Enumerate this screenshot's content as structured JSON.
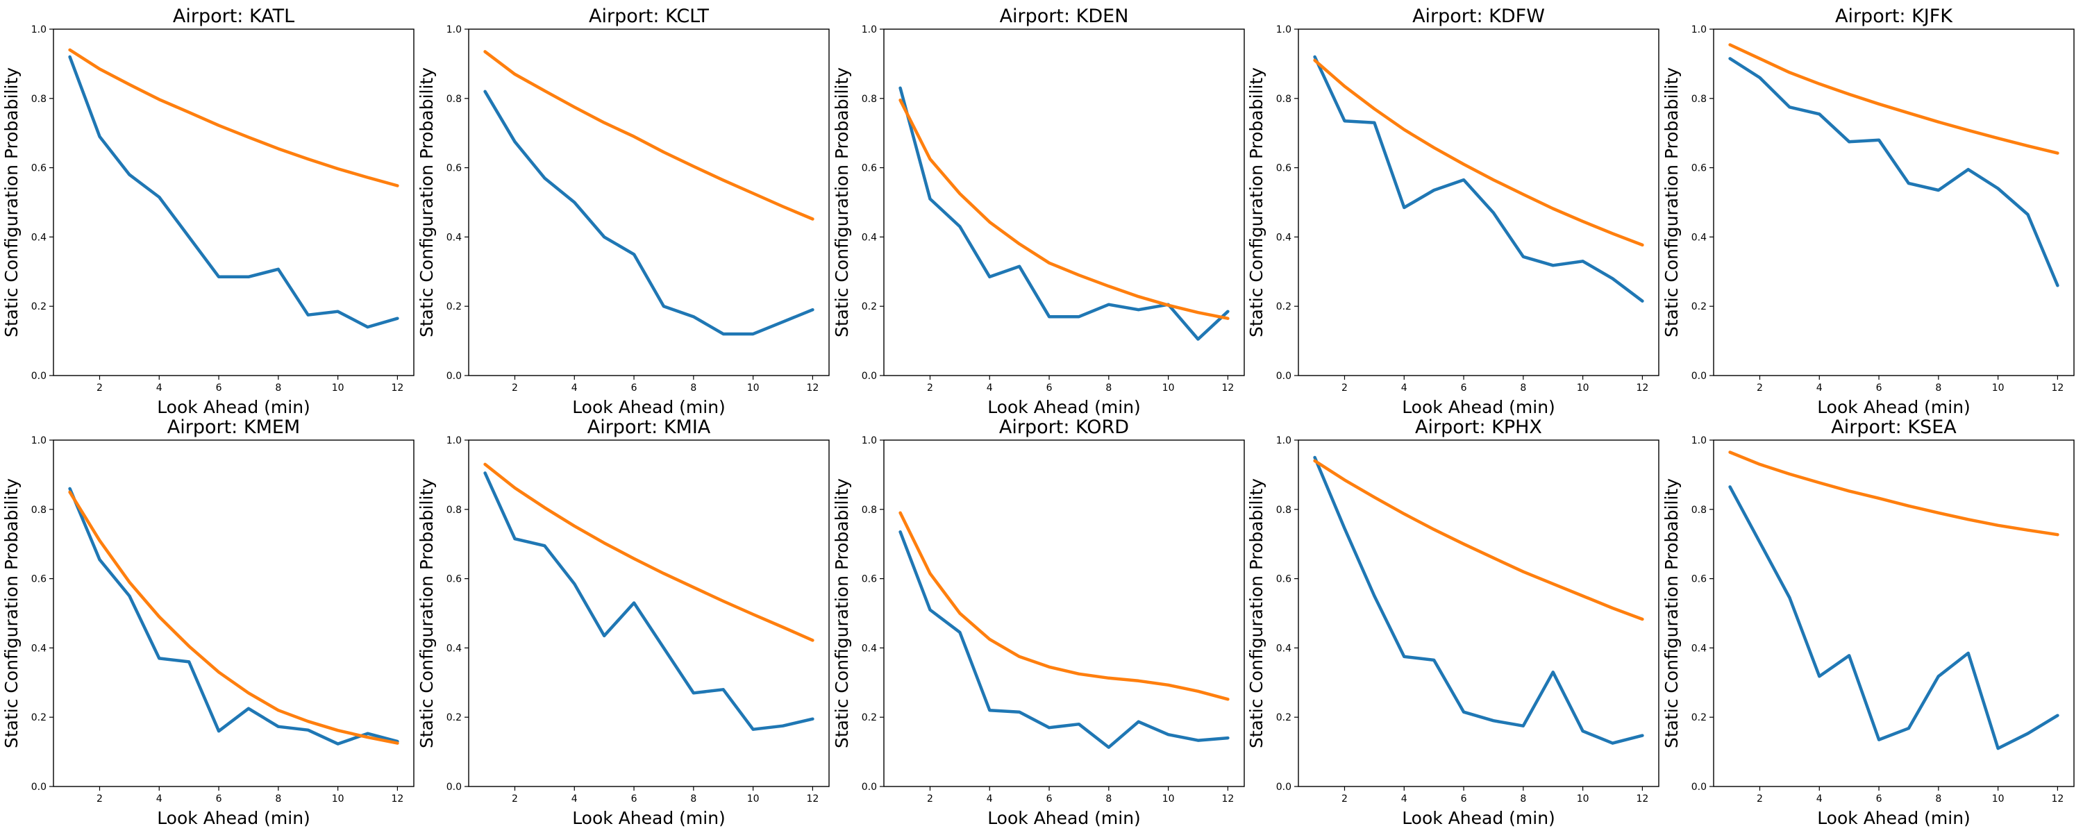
{
  "figure": {
    "xlabel": "Look Ahead (min)",
    "ylabel": "Static Configuration Probability"
  },
  "colors": {
    "series_1": "#1f77b4",
    "series_2": "#ff7f0e"
  },
  "chart_data": [
    {
      "type": "line",
      "title": "Airport: KATL",
      "xlabel": "Look Ahead (min)",
      "ylabel": "Static Configuration Probability",
      "xlim": [
        0.45,
        12.55
      ],
      "ylim": [
        0,
        1
      ],
      "xticks": [
        2,
        4,
        6,
        8,
        10,
        12
      ],
      "yticks": [
        0.0,
        0.2,
        0.4,
        0.6,
        0.8,
        1.0
      ],
      "yticklabels": [
        "0.0",
        "0.2",
        "0.4",
        "0.6",
        "0.8",
        "1.0"
      ],
      "grid": false,
      "x": [
        1,
        2,
        3,
        4,
        5,
        6,
        7,
        8,
        9,
        10,
        11,
        12
      ],
      "series": [
        {
          "color": "#1f77b4",
          "values": [
            0.92,
            0.69,
            0.58,
            0.515,
            0.4,
            0.285,
            0.285,
            0.307,
            0.175,
            0.185,
            0.14,
            0.165
          ]
        },
        {
          "color": "#ff7f0e",
          "values": [
            0.94,
            0.885,
            0.84,
            0.797,
            0.76,
            0.722,
            0.688,
            0.655,
            0.625,
            0.597,
            0.572,
            0.548
          ]
        }
      ]
    },
    {
      "type": "line",
      "title": "Airport: KCLT",
      "xlabel": "Look Ahead (min)",
      "ylabel": "Static Configuration Probability",
      "xlim": [
        0.45,
        12.55
      ],
      "ylim": [
        0,
        1
      ],
      "xticks": [
        2,
        4,
        6,
        8,
        10,
        12
      ],
      "yticks": [
        0.0,
        0.2,
        0.4,
        0.6,
        0.8,
        1.0
      ],
      "yticklabels": [
        "0.0",
        "0.2",
        "0.4",
        "0.6",
        "0.8",
        "1.0"
      ],
      "grid": false,
      "x": [
        1,
        2,
        3,
        4,
        5,
        6,
        7,
        8,
        9,
        10,
        11,
        12
      ],
      "series": [
        {
          "color": "#1f77b4",
          "values": [
            0.82,
            0.675,
            0.57,
            0.5,
            0.4,
            0.35,
            0.2,
            0.17,
            0.12,
            0.12,
            0.155,
            0.19
          ]
        },
        {
          "color": "#ff7f0e",
          "values": [
            0.935,
            0.87,
            0.822,
            0.775,
            0.73,
            0.69,
            0.645,
            0.604,
            0.564,
            0.526,
            0.488,
            0.452
          ]
        }
      ]
    },
    {
      "type": "line",
      "title": "Airport: KDEN",
      "xlabel": "Look Ahead (min)",
      "ylabel": "Static Configuration Probability",
      "xlim": [
        0.45,
        12.55
      ],
      "ylim": [
        0,
        1
      ],
      "xticks": [
        2,
        4,
        6,
        8,
        10,
        12
      ],
      "yticks": [
        0.0,
        0.2,
        0.4,
        0.6,
        0.8,
        1.0
      ],
      "yticklabels": [
        "0.0",
        "0.2",
        "0.4",
        "0.6",
        "0.8",
        "1.0"
      ],
      "grid": false,
      "x": [
        1,
        2,
        3,
        4,
        5,
        6,
        7,
        8,
        9,
        10,
        11,
        12
      ],
      "series": [
        {
          "color": "#1f77b4",
          "values": [
            0.83,
            0.51,
            0.43,
            0.285,
            0.315,
            0.17,
            0.17,
            0.205,
            0.19,
            0.205,
            0.105,
            0.185
          ]
        },
        {
          "color": "#ff7f0e",
          "values": [
            0.795,
            0.625,
            0.525,
            0.443,
            0.38,
            0.325,
            0.29,
            0.258,
            0.228,
            0.203,
            0.182,
            0.165
          ]
        }
      ]
    },
    {
      "type": "line",
      "title": "Airport: KDFW",
      "xlabel": "Look Ahead (min)",
      "ylabel": "Static Configuration Probability",
      "xlim": [
        0.45,
        12.55
      ],
      "ylim": [
        0,
        1
      ],
      "xticks": [
        2,
        4,
        6,
        8,
        10,
        12
      ],
      "yticks": [
        0.0,
        0.2,
        0.4,
        0.6,
        0.8,
        1.0
      ],
      "yticklabels": [
        "0.0",
        "0.2",
        "0.4",
        "0.6",
        "0.8",
        "1.0"
      ],
      "grid": false,
      "x": [
        1,
        2,
        3,
        4,
        5,
        6,
        7,
        8,
        9,
        10,
        11,
        12
      ],
      "series": [
        {
          "color": "#1f77b4",
          "values": [
            0.92,
            0.735,
            0.73,
            0.485,
            0.535,
            0.565,
            0.47,
            0.343,
            0.318,
            0.33,
            0.28,
            0.215
          ]
        },
        {
          "color": "#ff7f0e",
          "values": [
            0.91,
            0.835,
            0.77,
            0.71,
            0.658,
            0.61,
            0.565,
            0.523,
            0.482,
            0.445,
            0.41,
            0.377
          ]
        }
      ]
    },
    {
      "type": "line",
      "title": "Airport: KJFK",
      "xlabel": "Look Ahead (min)",
      "ylabel": "Static Configuration Probability",
      "xlim": [
        0.45,
        12.55
      ],
      "ylim": [
        0,
        1
      ],
      "xticks": [
        2,
        4,
        6,
        8,
        10,
        12
      ],
      "yticks": [
        0.0,
        0.2,
        0.4,
        0.6,
        0.8,
        1.0
      ],
      "yticklabels": [
        "0.0",
        "0.2",
        "0.4",
        "0.6",
        "0.8",
        "1.0"
      ],
      "grid": false,
      "x": [
        1,
        2,
        3,
        4,
        5,
        6,
        7,
        8,
        9,
        10,
        11,
        12
      ],
      "series": [
        {
          "color": "#1f77b4",
          "values": [
            0.915,
            0.86,
            0.775,
            0.755,
            0.675,
            0.68,
            0.555,
            0.535,
            0.595,
            0.54,
            0.465,
            0.26
          ]
        },
        {
          "color": "#ff7f0e",
          "values": [
            0.955,
            0.915,
            0.875,
            0.842,
            0.812,
            0.784,
            0.758,
            0.732,
            0.708,
            0.685,
            0.663,
            0.642
          ]
        }
      ]
    },
    {
      "type": "line",
      "title": "Airport: KMEM",
      "xlabel": "Look Ahead (min)",
      "ylabel": "Static Configuration Probability",
      "xlim": [
        0.45,
        12.55
      ],
      "ylim": [
        0,
        1
      ],
      "xticks": [
        2,
        4,
        6,
        8,
        10,
        12
      ],
      "yticks": [
        0.0,
        0.2,
        0.4,
        0.6,
        0.8,
        1.0
      ],
      "yticklabels": [
        "0.0",
        "0.2",
        "0.4",
        "0.6",
        "0.8",
        "1.0"
      ],
      "grid": false,
      "x": [
        1,
        2,
        3,
        4,
        5,
        6,
        7,
        8,
        9,
        10,
        11,
        12
      ],
      "series": [
        {
          "color": "#1f77b4",
          "values": [
            0.86,
            0.655,
            0.55,
            0.37,
            0.36,
            0.16,
            0.225,
            0.173,
            0.163,
            0.123,
            0.153,
            0.13
          ]
        },
        {
          "color": "#ff7f0e",
          "values": [
            0.85,
            0.71,
            0.59,
            0.49,
            0.405,
            0.33,
            0.27,
            0.22,
            0.188,
            0.162,
            0.142,
            0.125
          ]
        }
      ]
    },
    {
      "type": "line",
      "title": "Airport: KMIA",
      "xlabel": "Look Ahead (min)",
      "ylabel": "Static Configuration Probability",
      "xlim": [
        0.45,
        12.55
      ],
      "ylim": [
        0,
        1
      ],
      "xticks": [
        2,
        4,
        6,
        8,
        10,
        12
      ],
      "yticks": [
        0.0,
        0.2,
        0.4,
        0.6,
        0.8,
        1.0
      ],
      "yticklabels": [
        "0.0",
        "0.2",
        "0.4",
        "0.6",
        "0.8",
        "1.0"
      ],
      "grid": false,
      "x": [
        1,
        2,
        3,
        4,
        5,
        6,
        7,
        8,
        9,
        10,
        11,
        12
      ],
      "series": [
        {
          "color": "#1f77b4",
          "values": [
            0.905,
            0.715,
            0.695,
            0.585,
            0.435,
            0.53,
            0.4,
            0.27,
            0.28,
            0.165,
            0.175,
            0.195
          ]
        },
        {
          "color": "#ff7f0e",
          "values": [
            0.93,
            0.862,
            0.805,
            0.752,
            0.703,
            0.658,
            0.615,
            0.575,
            0.535,
            0.497,
            0.46,
            0.422
          ]
        }
      ]
    },
    {
      "type": "line",
      "title": "Airport: KORD",
      "xlabel": "Look Ahead (min)",
      "ylabel": "Static Configuration Probability",
      "xlim": [
        0.45,
        12.55
      ],
      "ylim": [
        0,
        1
      ],
      "xticks": [
        2,
        4,
        6,
        8,
        10,
        12
      ],
      "yticks": [
        0.0,
        0.2,
        0.4,
        0.6,
        0.8,
        1.0
      ],
      "yticklabels": [
        "0.0",
        "0.2",
        "0.4",
        "0.6",
        "0.8",
        "1.0"
      ],
      "grid": false,
      "x": [
        1,
        2,
        3,
        4,
        5,
        6,
        7,
        8,
        9,
        10,
        11,
        12
      ],
      "series": [
        {
          "color": "#1f77b4",
          "values": [
            0.735,
            0.51,
            0.445,
            0.22,
            0.215,
            0.17,
            0.18,
            0.113,
            0.187,
            0.15,
            0.133,
            0.14
          ]
        },
        {
          "color": "#ff7f0e",
          "values": [
            0.79,
            0.615,
            0.5,
            0.425,
            0.375,
            0.345,
            0.325,
            0.313,
            0.305,
            0.293,
            0.275,
            0.252
          ]
        }
      ]
    },
    {
      "type": "line",
      "title": "Airport: KPHX",
      "xlabel": "Look Ahead (min)",
      "ylabel": "Static Configuration Probability",
      "xlim": [
        0.45,
        12.55
      ],
      "ylim": [
        0,
        1
      ],
      "xticks": [
        2,
        4,
        6,
        8,
        10,
        12
      ],
      "yticks": [
        0.0,
        0.2,
        0.4,
        0.6,
        0.8,
        1.0
      ],
      "yticklabels": [
        "0.0",
        "0.2",
        "0.4",
        "0.6",
        "0.8",
        "1.0"
      ],
      "grid": false,
      "x": [
        1,
        2,
        3,
        4,
        5,
        6,
        7,
        8,
        9,
        10,
        11,
        12
      ],
      "series": [
        {
          "color": "#1f77b4",
          "values": [
            0.95,
            0.745,
            0.55,
            0.375,
            0.365,
            0.215,
            0.19,
            0.175,
            0.33,
            0.16,
            0.125,
            0.147
          ]
        },
        {
          "color": "#ff7f0e",
          "values": [
            0.94,
            0.885,
            0.835,
            0.787,
            0.742,
            0.7,
            0.66,
            0.62,
            0.585,
            0.55,
            0.515,
            0.483
          ]
        }
      ]
    },
    {
      "type": "line",
      "title": "Airport: KSEA",
      "xlabel": "Look Ahead (min)",
      "ylabel": "Static Configuration Probability",
      "xlim": [
        0.45,
        12.55
      ],
      "ylim": [
        0,
        1
      ],
      "xticks": [
        2,
        4,
        6,
        8,
        10,
        12
      ],
      "yticks": [
        0.0,
        0.2,
        0.4,
        0.6,
        0.8,
        1.0
      ],
      "yticklabels": [
        "0.0",
        "0.2",
        "0.4",
        "0.6",
        "0.8",
        "1.0"
      ],
      "grid": false,
      "x": [
        1,
        2,
        3,
        4,
        5,
        6,
        7,
        8,
        9,
        10,
        11,
        12
      ],
      "series": [
        {
          "color": "#1f77b4",
          "values": [
            0.865,
            0.705,
            0.545,
            0.318,
            0.378,
            0.135,
            0.168,
            0.318,
            0.385,
            0.11,
            0.153,
            0.205
          ]
        },
        {
          "color": "#ff7f0e",
          "values": [
            0.965,
            0.93,
            0.902,
            0.877,
            0.853,
            0.832,
            0.81,
            0.79,
            0.771,
            0.754,
            0.74,
            0.727
          ]
        }
      ]
    }
  ]
}
